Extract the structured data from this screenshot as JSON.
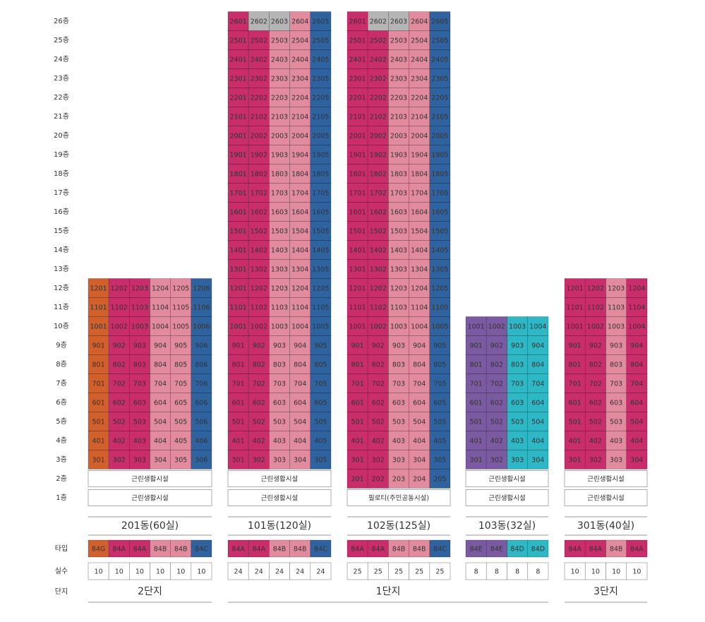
{
  "floor_labels": [
    "26층",
    "25층",
    "24층",
    "23층",
    "22층",
    "21층",
    "20층",
    "19층",
    "18층",
    "17층",
    "16층",
    "15층",
    "14층",
    "13층",
    "12층",
    "11층",
    "10층",
    "9층",
    "8층",
    "7층",
    "6층",
    "5층",
    "4층",
    "3층",
    "2층",
    "1층"
  ],
  "row_labels": [
    "타입",
    "실수",
    "단지"
  ],
  "type_colors": {
    "84G": "#d2602c",
    "84A": "#c92d6a",
    "84B": "#e38b9e",
    "84C": "#2f63a0",
    "84E": "#7a5aa0",
    "84D": "#2eb7c4"
  },
  "grey_color": "#b5b5b5",
  "complexes": [
    {
      "name": "2단지",
      "buildings": [
        {
          "name": "201동(60실)",
          "types": [
            "84G",
            "84A",
            "84A",
            "84B",
            "84B",
            "84C"
          ],
          "counts": [
            10,
            10,
            10,
            10,
            10,
            10
          ],
          "grey_units": [],
          "units": [
            [
              1201,
              1202,
              1203,
              1204,
              1205,
              1206
            ],
            [
              1101,
              1102,
              1103,
              1104,
              1105,
              1106
            ],
            [
              1001,
              1002,
              1003,
              1004,
              1005,
              1006
            ],
            [
              901,
              902,
              903,
              904,
              905,
              906
            ],
            [
              801,
              802,
              803,
              804,
              805,
              806
            ],
            [
              701,
              702,
              703,
              704,
              705,
              706
            ],
            [
              601,
              602,
              603,
              604,
              605,
              606
            ],
            [
              501,
              502,
              503,
              504,
              505,
              506
            ],
            [
              401,
              402,
              403,
              404,
              405,
              406
            ],
            [
              301,
              302,
              303,
              304,
              305,
              306
            ]
          ],
          "facilities": [
            "근린생활시설",
            "근린생활시설"
          ]
        }
      ]
    },
    {
      "name": "1단지",
      "buildings": [
        {
          "name": "101동(120실)",
          "types": [
            "84A",
            "84A",
            "84B",
            "84B",
            "84C"
          ],
          "counts": [
            24,
            24,
            24,
            24,
            24
          ],
          "grey_units": [
            2602,
            2603
          ],
          "units": [
            [
              2601,
              2602,
              2603,
              2604,
              2605
            ],
            [
              2501,
              2502,
              2503,
              2504,
              2505
            ],
            [
              2401,
              2402,
              2403,
              2404,
              2405
            ],
            [
              2301,
              2302,
              2303,
              2304,
              2305
            ],
            [
              2201,
              2202,
              2203,
              2204,
              2205
            ],
            [
              2101,
              2102,
              2103,
              2104,
              2105
            ],
            [
              2001,
              2002,
              2003,
              2004,
              2005
            ],
            [
              1901,
              1902,
              1903,
              1904,
              1905
            ],
            [
              1801,
              1802,
              1803,
              1804,
              1805
            ],
            [
              1701,
              1702,
              1703,
              1704,
              1705
            ],
            [
              1601,
              1602,
              1603,
              1604,
              1605
            ],
            [
              1501,
              1502,
              1503,
              1504,
              1505
            ],
            [
              1401,
              1402,
              1403,
              1404,
              1405
            ],
            [
              1301,
              1302,
              1303,
              1304,
              1305
            ],
            [
              1201,
              1202,
              1203,
              1204,
              1205
            ],
            [
              1101,
              1102,
              1103,
              1104,
              1105
            ],
            [
              1001,
              1002,
              1003,
              1004,
              1005
            ],
            [
              901,
              902,
              903,
              904,
              905
            ],
            [
              801,
              802,
              803,
              804,
              805
            ],
            [
              701,
              702,
              703,
              704,
              705
            ],
            [
              601,
              602,
              603,
              604,
              605
            ],
            [
              501,
              502,
              503,
              504,
              505
            ],
            [
              401,
              402,
              403,
              404,
              405
            ],
            [
              301,
              302,
              303,
              304,
              305
            ]
          ],
          "facilities": [
            "근린생활시설",
            "근린생활시설"
          ]
        },
        {
          "name": "102동(125실)",
          "types": [
            "84A",
            "84A",
            "84B",
            "84B",
            "84C"
          ],
          "counts": [
            25,
            25,
            25,
            25,
            25
          ],
          "grey_units": [
            2602,
            2603
          ],
          "units": [
            [
              2601,
              2602,
              2603,
              2604,
              2605
            ],
            [
              2501,
              2502,
              2503,
              2504,
              2505
            ],
            [
              2401,
              2402,
              2403,
              2404,
              2405
            ],
            [
              2301,
              2302,
              2303,
              2304,
              2305
            ],
            [
              2201,
              2202,
              2203,
              2204,
              2205
            ],
            [
              2101,
              2102,
              2103,
              2104,
              2105
            ],
            [
              2001,
              2002,
              2003,
              2004,
              2005
            ],
            [
              1901,
              1902,
              1903,
              1904,
              1905
            ],
            [
              1801,
              1802,
              1803,
              1804,
              1805
            ],
            [
              1701,
              1702,
              1703,
              1704,
              1705
            ],
            [
              1601,
              1602,
              1603,
              1604,
              1605
            ],
            [
              1501,
              1502,
              1503,
              1504,
              1505
            ],
            [
              1401,
              1402,
              1403,
              1404,
              1405
            ],
            [
              1301,
              1302,
              1303,
              1304,
              1305
            ],
            [
              1201,
              1202,
              1203,
              1204,
              1205
            ],
            [
              1101,
              1102,
              1103,
              1104,
              1105
            ],
            [
              1001,
              1002,
              1003,
              1004,
              1005
            ],
            [
              901,
              902,
              903,
              904,
              905
            ],
            [
              801,
              802,
              803,
              804,
              805
            ],
            [
              701,
              702,
              703,
              704,
              705
            ],
            [
              601,
              602,
              603,
              604,
              605
            ],
            [
              501,
              502,
              503,
              504,
              505
            ],
            [
              401,
              402,
              403,
              404,
              405
            ],
            [
              301,
              302,
              303,
              304,
              305
            ],
            [
              201,
              202,
              203,
              204,
              205
            ]
          ],
          "facilities": [
            "필로티(주민공동시설)"
          ]
        },
        {
          "name": "103동(32실)",
          "types": [
            "84E",
            "84E",
            "84D",
            "84D"
          ],
          "counts": [
            8,
            8,
            8,
            8
          ],
          "grey_units": [],
          "units": [
            [
              1001,
              1002,
              1003,
              1004
            ],
            [
              901,
              902,
              903,
              904
            ],
            [
              801,
              802,
              803,
              804
            ],
            [
              701,
              702,
              703,
              704
            ],
            [
              601,
              602,
              603,
              604
            ],
            [
              501,
              502,
              503,
              504
            ],
            [
              401,
              402,
              403,
              404
            ],
            [
              301,
              302,
              303,
              304
            ]
          ],
          "facilities": [
            "근린생활시설",
            "근린생활시설"
          ]
        }
      ]
    },
    {
      "name": "3단지",
      "buildings": [
        {
          "name": "301동(40실)",
          "types": [
            "84A",
            "84A",
            "84B",
            "84A"
          ],
          "counts": [
            10,
            10,
            10,
            10
          ],
          "grey_units": [],
          "units": [
            [
              1201,
              1202,
              1203,
              1204
            ],
            [
              1101,
              1102,
              1103,
              1104
            ],
            [
              1001,
              1002,
              1003,
              1004
            ],
            [
              901,
              902,
              903,
              904
            ],
            [
              801,
              802,
              803,
              804
            ],
            [
              701,
              702,
              703,
              704
            ],
            [
              601,
              602,
              603,
              604
            ],
            [
              501,
              502,
              503,
              504
            ],
            [
              401,
              402,
              403,
              404
            ],
            [
              301,
              302,
              303,
              304
            ]
          ],
          "facilities": [
            "근린생활시설",
            "근린생활시설"
          ]
        }
      ]
    }
  ]
}
